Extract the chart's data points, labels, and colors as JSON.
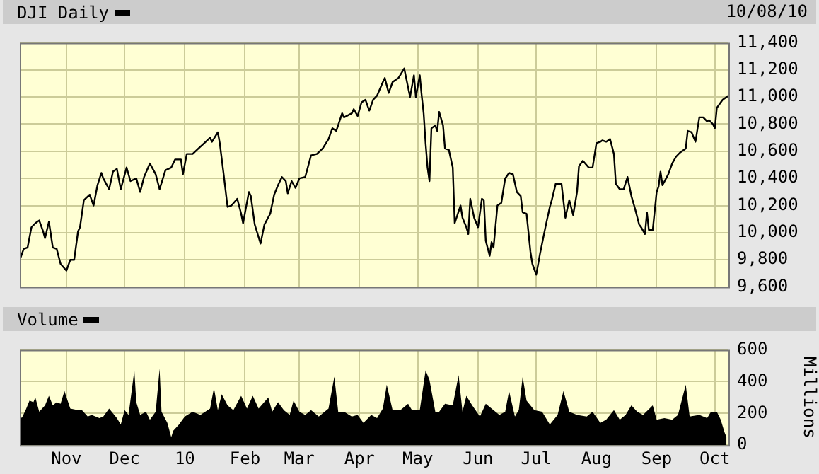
{
  "chart_data": [
    {
      "type": "line",
      "legend": "top left",
      "grid": true,
      "tick_labels": "y",
      "annotations": [
        "10/08/10"
      ],
      "xlim": [
        "2009-10-08",
        "2010-10-08"
      ],
      "xticks": [
        {
          "value": "2009-11-01",
          "label": null
        },
        {
          "value": "2009-12-01",
          "label": null
        },
        {
          "value": "2010-01-01",
          "label": null
        },
        {
          "value": "2010-02-01",
          "label": null
        },
        {
          "value": "2010-03-01",
          "label": null
        },
        {
          "value": "2010-04-01",
          "label": null
        },
        {
          "value": "2010-05-01",
          "label": null
        },
        {
          "value": "2010-06-01",
          "label": null
        },
        {
          "value": "2010-07-01",
          "label": null
        },
        {
          "value": "2010-08-01",
          "label": null
        },
        {
          "value": "2010-09-01",
          "label": null
        },
        {
          "value": "2010-10-01",
          "label": null
        }
      ],
      "ylim": [
        9600,
        11400
      ],
      "yticks": [
        {
          "value": 9600,
          "label": "9,600"
        },
        {
          "value": 9800,
          "label": "9,800"
        },
        {
          "value": 10000,
          "label": "10,000"
        },
        {
          "value": 10200,
          "label": "10,200"
        },
        {
          "value": 10400,
          "label": "10,400"
        },
        {
          "value": 10600,
          "label": "10,600"
        },
        {
          "value": 10800,
          "label": "10,800"
        },
        {
          "value": 11000,
          "label": "11,000"
        },
        {
          "value": 11200,
          "label": "11,200"
        },
        {
          "value": 11400,
          "label": "11,400"
        }
      ],
      "series": [
        {
          "name": "DJI Daily",
          "color": "#000000",
          "x": [
            "2009-10-08",
            "2009-10-10",
            "2009-10-12",
            "2009-10-14",
            "2009-10-16",
            "2009-10-18",
            "2009-10-20",
            "2009-10-21",
            "2009-10-23",
            "2009-10-25",
            "2009-10-27",
            "2009-10-29",
            "2009-11-01",
            "2009-11-03",
            "2009-11-05",
            "2009-11-07",
            "2009-11-08",
            "2009-11-10",
            "2009-11-13",
            "2009-11-15",
            "2009-11-17",
            "2009-11-19",
            "2009-11-20",
            "2009-11-23",
            "2009-11-25",
            "2009-11-27",
            "2009-11-29",
            "2009-12-02",
            "2009-12-04",
            "2009-12-07",
            "2009-12-09",
            "2009-12-11",
            "2009-12-14",
            "2009-12-17",
            "2009-12-19",
            "2009-12-22",
            "2009-12-25",
            "2009-12-27",
            "2009-12-30",
            "2009-12-31",
            "2010-01-02",
            "2010-01-05",
            "2010-01-08",
            "2010-01-11",
            "2010-01-14",
            "2010-01-15",
            "2010-01-18",
            "2010-01-19",
            "2010-01-21",
            "2010-01-23",
            "2010-01-25",
            "2010-01-28",
            "2010-01-30",
            "2010-01-31",
            "2010-02-03",
            "2010-02-04",
            "2010-02-06",
            "2010-02-09",
            "2010-02-11",
            "2010-02-14",
            "2010-02-16",
            "2010-02-18",
            "2010-02-20",
            "2010-02-22",
            "2010-02-23",
            "2010-02-25",
            "2010-02-27",
            "2010-03-01",
            "2010-03-04",
            "2010-03-07",
            "2010-03-10",
            "2010-03-13",
            "2010-03-16",
            "2010-03-18",
            "2010-03-20",
            "2010-03-23",
            "2010-03-24",
            "2010-03-28",
            "2010-03-29",
            "2010-03-31",
            "2010-04-02",
            "2010-04-04",
            "2010-04-06",
            "2010-04-08",
            "2010-04-10",
            "2010-04-13",
            "2010-04-14",
            "2010-04-16",
            "2010-04-18",
            "2010-04-21",
            "2010-04-24",
            "2010-04-25",
            "2010-04-27",
            "2010-04-29",
            "2010-04-30",
            "2010-05-02",
            "2010-05-03",
            "2010-05-04",
            "2010-05-05",
            "2010-05-06",
            "2010-05-07",
            "2010-05-08",
            "2010-05-10",
            "2010-05-11",
            "2010-05-12",
            "2010-05-14",
            "2010-05-15",
            "2010-05-17",
            "2010-05-19",
            "2010-05-20",
            "2010-05-23",
            "2010-05-24",
            "2010-05-26",
            "2010-05-27",
            "2010-05-28",
            "2010-05-30",
            "2010-06-01",
            "2010-06-03",
            "2010-06-04",
            "2010-06-05",
            "2010-06-07",
            "2010-06-08",
            "2010-06-09",
            "2010-06-11",
            "2010-06-13",
            "2010-06-15",
            "2010-06-17",
            "2010-06-19",
            "2010-06-21",
            "2010-06-23",
            "2010-06-24",
            "2010-06-26",
            "2010-06-28",
            "2010-06-29",
            "2010-07-01",
            "2010-07-03",
            "2010-07-06",
            "2010-07-08",
            "2010-07-09",
            "2010-07-11",
            "2010-07-14",
            "2010-07-16",
            "2010-07-18",
            "2010-07-20",
            "2010-07-22",
            "2010-07-23",
            "2010-07-25",
            "2010-07-28",
            "2010-07-30",
            "2010-08-01",
            "2010-08-03",
            "2010-08-04",
            "2010-08-06",
            "2010-08-08",
            "2010-08-10",
            "2010-08-11",
            "2010-08-13",
            "2010-08-15",
            "2010-08-17",
            "2010-08-19",
            "2010-08-21",
            "2010-08-23",
            "2010-08-24",
            "2010-08-26",
            "2010-08-27",
            "2010-08-28",
            "2010-08-30",
            "2010-09-01",
            "2010-09-02",
            "2010-09-03",
            "2010-09-04",
            "2010-09-07",
            "2010-09-09",
            "2010-09-11",
            "2010-09-13",
            "2010-09-16",
            "2010-09-17",
            "2010-09-19",
            "2010-09-21",
            "2010-09-23",
            "2010-09-25",
            "2010-09-27",
            "2010-09-28",
            "2010-09-30",
            "2010-10-01",
            "2010-10-02",
            "2010-10-04",
            "2010-10-05",
            "2010-10-08"
          ],
          "values": [
            9800,
            9880,
            9890,
            10040,
            10070,
            10090,
            10010,
            9960,
            10080,
            9890,
            9880,
            9770,
            9720,
            9800,
            9800,
            10010,
            10040,
            10240,
            10280,
            10200,
            10350,
            10440,
            10400,
            10320,
            10450,
            10470,
            10320,
            10480,
            10380,
            10400,
            10300,
            10410,
            10510,
            10430,
            10320,
            10460,
            10480,
            10540,
            10540,
            10430,
            10580,
            10580,
            10620,
            10660,
            10700,
            10670,
            10740,
            10660,
            10430,
            10190,
            10200,
            10250,
            10140,
            10070,
            10300,
            10270,
            10060,
            9920,
            10060,
            10140,
            10280,
            10350,
            10410,
            10380,
            10290,
            10380,
            10330,
            10400,
            10410,
            10570,
            10580,
            10620,
            10690,
            10770,
            10750,
            10880,
            10850,
            10880,
            10910,
            10860,
            10960,
            10980,
            10900,
            10980,
            11010,
            11110,
            11140,
            11030,
            11110,
            11140,
            11210,
            11140,
            11000,
            11160,
            11000,
            11160,
            11010,
            10880,
            10660,
            10480,
            10380,
            10770,
            10790,
            10750,
            10890,
            10790,
            10620,
            10610,
            10480,
            10070,
            10200,
            10110,
            10040,
            9990,
            10250,
            10110,
            10040,
            10250,
            10240,
            9940,
            9830,
            9930,
            9890,
            10200,
            10220,
            10400,
            10440,
            10430,
            10300,
            10270,
            10150,
            10140,
            9860,
            9770,
            9690,
            9850,
            10060,
            10190,
            10240,
            10360,
            10360,
            10110,
            10240,
            10130,
            10300,
            10490,
            10530,
            10480,
            10480,
            10660,
            10670,
            10680,
            10670,
            10690,
            10580,
            10360,
            10320,
            10320,
            10410,
            10270,
            10170,
            10060,
            10040,
            9990,
            10150,
            10020,
            10020,
            10300,
            10340,
            10450,
            10350,
            10430,
            10510,
            10560,
            10590,
            10620,
            10750,
            10740,
            10670,
            10850,
            10850,
            10820,
            10830,
            10800,
            10770,
            10920,
            10960,
            10980,
            11010
          ]
        }
      ]
    },
    {
      "type": "area",
      "legend": "top left",
      "grid": true,
      "ylabel": "Millions",
      "xlim": [
        "2009-10-08",
        "2010-10-08"
      ],
      "xticks": [
        {
          "value": "2009-11-01",
          "label": "Nov"
        },
        {
          "value": "2009-12-01",
          "label": "Dec"
        },
        {
          "value": "2010-01-01",
          "label": "10"
        },
        {
          "value": "2010-02-01",
          "label": "Feb"
        },
        {
          "value": "2010-03-01",
          "label": "Mar"
        },
        {
          "value": "2010-04-01",
          "label": "Apr"
        },
        {
          "value": "2010-05-01",
          "label": "May"
        },
        {
          "value": "2010-06-01",
          "label": "Jun"
        },
        {
          "value": "2010-07-01",
          "label": "Jul"
        },
        {
          "value": "2010-08-01",
          "label": "Aug"
        },
        {
          "value": "2010-09-01",
          "label": "Sep"
        },
        {
          "value": "2010-10-01",
          "label": "Oct"
        }
      ],
      "ylim": [
        0,
        600
      ],
      "yticks": [
        0,
        200,
        400,
        600
      ],
      "series": [
        {
          "name": "Volume",
          "color": "#000000",
          "x": [
            "2009-10-08",
            "2009-10-09",
            "2009-10-11",
            "2009-10-13",
            "2009-10-15",
            "2009-10-16",
            "2009-10-18",
            "2009-10-21",
            "2009-10-23",
            "2009-10-25",
            "2009-10-27",
            "2009-10-29",
            "2009-10-31",
            "2009-11-03",
            "2009-11-07",
            "2009-11-09",
            "2009-11-12",
            "2009-11-14",
            "2009-11-18",
            "2009-11-20",
            "2009-11-23",
            "2009-11-27",
            "2009-11-29",
            "2009-12-01",
            "2009-12-03",
            "2009-12-06",
            "2009-12-07",
            "2009-12-09",
            "2009-12-12",
            "2009-12-14",
            "2009-12-17",
            "2009-12-19",
            "2009-12-20",
            "2009-12-23",
            "2009-12-25",
            "2009-12-26",
            "2009-12-29",
            "2010-01-01",
            "2010-01-05",
            "2010-01-09",
            "2010-01-14",
            "2010-01-16",
            "2010-01-18",
            "2010-01-20",
            "2010-01-23",
            "2010-01-26",
            "2010-01-30",
            "2010-02-02",
            "2010-02-05",
            "2010-02-08",
            "2010-02-13",
            "2010-02-15",
            "2010-02-18",
            "2010-02-21",
            "2010-02-24",
            "2010-02-26",
            "2010-03-01",
            "2010-03-04",
            "2010-03-07",
            "2010-03-11",
            "2010-03-14",
            "2010-03-16",
            "2010-03-19",
            "2010-03-21",
            "2010-03-24",
            "2010-03-28",
            "2010-03-31",
            "2010-04-03",
            "2010-04-07",
            "2010-04-10",
            "2010-04-13",
            "2010-04-15",
            "2010-04-18",
            "2010-04-22",
            "2010-04-26",
            "2010-04-28",
            "2010-05-02",
            "2010-05-05",
            "2010-05-07",
            "2010-05-10",
            "2010-05-12",
            "2010-05-15",
            "2010-05-19",
            "2010-05-22",
            "2010-05-24",
            "2010-05-26",
            "2010-05-29",
            "2010-06-02",
            "2010-06-05",
            "2010-06-09",
            "2010-06-12",
            "2010-06-15",
            "2010-06-17",
            "2010-06-20",
            "2010-06-22",
            "2010-06-24",
            "2010-06-26",
            "2010-06-30",
            "2010-07-04",
            "2010-07-08",
            "2010-07-12",
            "2010-07-15",
            "2010-07-18",
            "2010-07-22",
            "2010-07-27",
            "2010-07-30",
            "2010-08-03",
            "2010-08-06",
            "2010-08-10",
            "2010-08-13",
            "2010-08-16",
            "2010-08-19",
            "2010-08-22",
            "2010-08-25",
            "2010-08-30",
            "2010-09-01",
            "2010-09-05",
            "2010-09-09",
            "2010-09-12",
            "2010-09-16",
            "2010-09-18",
            "2010-09-23",
            "2010-09-27",
            "2010-09-29",
            "2010-10-02",
            "2010-10-04",
            "2010-10-06",
            "2010-10-07"
          ],
          "values": [
            210,
            170,
            220,
            280,
            270,
            300,
            210,
            250,
            310,
            250,
            270,
            260,
            340,
            230,
            220,
            220,
            180,
            190,
            170,
            180,
            230,
            170,
            130,
            220,
            190,
            470,
            270,
            190,
            210,
            160,
            210,
            480,
            210,
            140,
            50,
            90,
            130,
            180,
            210,
            190,
            230,
            360,
            220,
            320,
            250,
            220,
            310,
            230,
            310,
            230,
            300,
            210,
            270,
            220,
            190,
            280,
            210,
            190,
            220,
            180,
            210,
            230,
            430,
            210,
            210,
            180,
            190,
            140,
            190,
            170,
            230,
            380,
            220,
            220,
            260,
            220,
            220,
            470,
            410,
            210,
            210,
            260,
            250,
            440,
            210,
            310,
            250,
            180,
            260,
            220,
            190,
            210,
            340,
            180,
            220,
            430,
            280,
            220,
            210,
            130,
            190,
            340,
            210,
            190,
            180,
            210,
            140,
            160,
            220,
            160,
            190,
            250,
            210,
            190,
            250,
            160,
            170,
            160,
            190,
            380,
            180,
            190,
            170,
            210,
            210,
            160,
            80,
            50
          ]
        }
      ]
    }
  ]
}
